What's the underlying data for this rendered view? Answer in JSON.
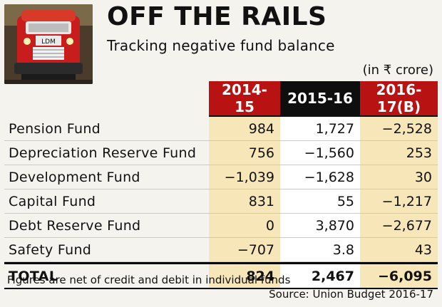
{
  "header": {
    "title": "OFF THE RAILS",
    "subtitle": "Tracking negative fund balance",
    "unit": "(in ₹ crore)",
    "logo_text": "LDM"
  },
  "chart_data": {
    "type": "table",
    "title": "OFF THE RAILS",
    "subtitle": "Tracking negative fund balance",
    "unit": "(in ₹ crore)",
    "columns": [
      "2014-15",
      "2015-16",
      "2016-17(B)"
    ],
    "rows": [
      {
        "label": "Pension Fund",
        "values": [
          "984",
          "1,727",
          "−2,528"
        ]
      },
      {
        "label": "Depreciation Reserve Fund",
        "values": [
          "756",
          "−1,560",
          "253"
        ]
      },
      {
        "label": "Development Fund",
        "values": [
          "−1,039",
          "−1,628",
          "30"
        ]
      },
      {
        "label": "Capital Fund",
        "values": [
          "831",
          "55",
          "−1,217"
        ]
      },
      {
        "label": "Debt Reserve Fund",
        "values": [
          "0",
          "3,870",
          "−2,677"
        ]
      },
      {
        "label": "Safety Fund",
        "values": [
          "−707",
          "3.8",
          "43"
        ]
      }
    ],
    "total": {
      "label": "TOTAL",
      "values": [
        "824",
        "2,467",
        "−6,095"
      ]
    }
  },
  "footer": {
    "note": "Figures are net of credit and debit in individual funds",
    "source": "Source: Union Budget 2016-17"
  },
  "colors": {
    "header_red": "#b81212",
    "header_black": "#0e0e0e",
    "cell_highlight": "#f6e6b8",
    "cell_plain": "#ffffff"
  }
}
